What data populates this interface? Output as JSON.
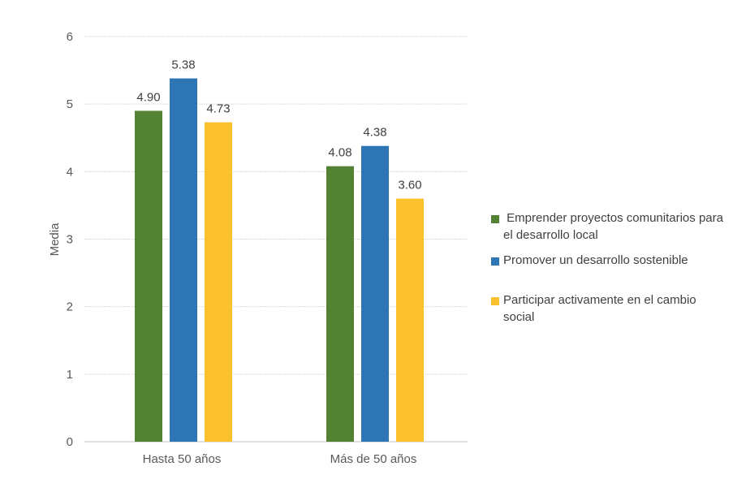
{
  "chart_data": {
    "type": "bar",
    "title": "",
    "xlabel": "",
    "ylabel": "Media",
    "ylim": [
      0,
      6
    ],
    "yticks": [
      "0",
      "1",
      "2",
      "3",
      "4",
      "5",
      "6"
    ],
    "grid": true,
    "legend_position": "right",
    "categories": [
      "Hasta 50 años",
      "Más de 50 años"
    ],
    "series": [
      {
        "name": " Emprender proyectos comunitarios para el desarrollo local",
        "color": "#548235",
        "values": [
          4.9,
          4.08
        ],
        "labels": [
          "4.90",
          "4.08"
        ]
      },
      {
        "name": "Promover un desarrollo sostenible",
        "color": "#2E75B6",
        "values": [
          5.38,
          4.38
        ],
        "labels": [
          "5.38",
          "4.38"
        ]
      },
      {
        "name": "Participar activamente en el cambio social",
        "color": "#FBC02D",
        "values": [
          4.73,
          3.6
        ],
        "labels": [
          "4.73",
          "3.60"
        ]
      }
    ]
  }
}
